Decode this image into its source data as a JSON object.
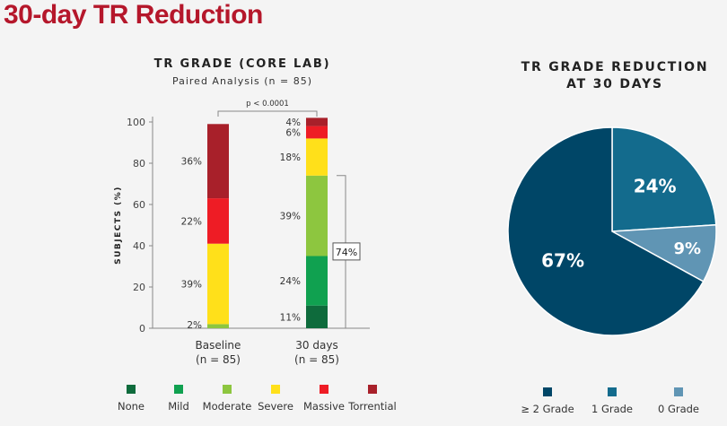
{
  "page": {
    "title": "30-day TR Reduction"
  },
  "colors": {
    "None": "#0e6b3c",
    "Mild": "#10a150",
    "Moderate": "#8dc63f",
    "Severe": "#ffe01a",
    "Massive": "#ee1c25",
    "Torrential": "#a8202a",
    "pie_large": "#004667",
    "pie_mid": "#136b8d",
    "pie_small": "#6095b4"
  },
  "chart_data": [
    {
      "type": "bar",
      "stacked": true,
      "title": "TR GRADE (CORE LAB)",
      "subtitle": "Paired Analysis (n = 85)",
      "ylabel": "SUBJECTS (%)",
      "ylim": [
        0,
        100
      ],
      "yticks": [
        0,
        20,
        40,
        60,
        80,
        100
      ],
      "categories": [
        "Baseline",
        "30 days"
      ],
      "category_sublabels": [
        "(n = 85)",
        "(n = 85)"
      ],
      "series": [
        {
          "name": "None",
          "values": [
            0,
            11
          ],
          "labels": [
            "",
            "11%"
          ]
        },
        {
          "name": "Mild",
          "values": [
            0,
            24
          ],
          "labels": [
            "",
            "24%"
          ]
        },
        {
          "name": "Moderate",
          "values": [
            2,
            39
          ],
          "labels": [
            "2%",
            "39%"
          ]
        },
        {
          "name": "Severe",
          "values": [
            39,
            18
          ],
          "labels": [
            "39%",
            "18%"
          ]
        },
        {
          "name": "Massive",
          "values": [
            22,
            6
          ],
          "labels": [
            "22%",
            "6%"
          ]
        },
        {
          "name": "Torrential",
          "values": [
            36,
            4
          ],
          "labels": [
            "36%",
            "4%"
          ]
        }
      ],
      "annotations": {
        "p_value": "p < 0.0001",
        "bracket_label": "74%"
      },
      "legend_position": "bottom"
    },
    {
      "type": "pie",
      "title": "TR GRADE REDUCTION AT 30 DAYS",
      "title_lines": [
        "TR GRADE REDUCTION",
        "AT 30 DAYS"
      ],
      "slices": [
        {
          "name": "≥ 2 Grade",
          "value": 67,
          "label": "67%",
          "color": "#004667"
        },
        {
          "name": "1 Grade",
          "value": 24,
          "label": "24%",
          "color": "#136b8d"
        },
        {
          "name": "0 Grade",
          "value": 9,
          "label": "9%",
          "color": "#6095b4"
        }
      ],
      "legend_position": "bottom"
    }
  ]
}
